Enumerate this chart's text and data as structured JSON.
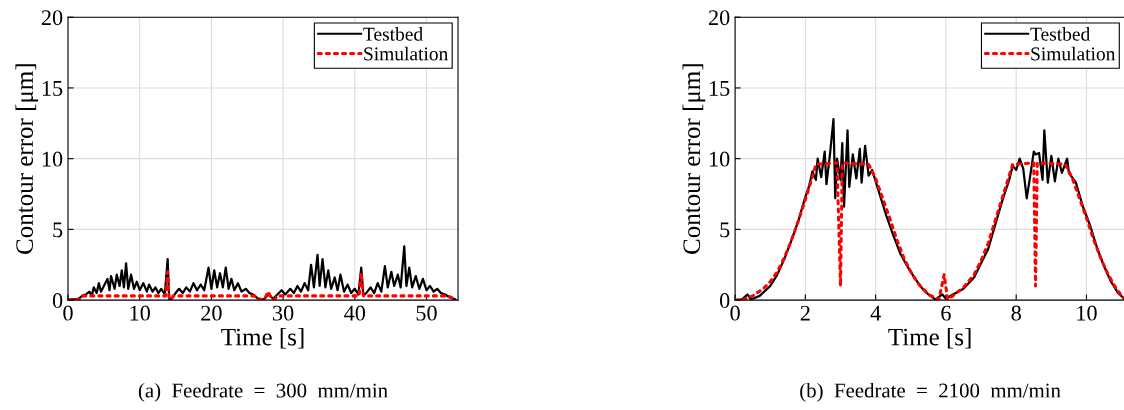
{
  "chart_data": [
    {
      "type": "line",
      "title": "(a)  Feedrate  =  300  mm/min",
      "xlabel": "Time [s]",
      "ylabel": "Contour error [μm]",
      "xlim": [
        0,
        54.4
      ],
      "ylim": [
        0,
        20
      ],
      "xticks": [
        0,
        10,
        20,
        30,
        40,
        50
      ],
      "yticks": [
        0,
        5,
        10,
        15,
        20
      ],
      "grid": true,
      "legend": "top right",
      "series": [
        {
          "name": "Testbed",
          "color": "#000000",
          "line_style": "solid",
          "x": [
            0,
            1,
            1.5,
            2,
            2.5,
            3,
            3.3,
            3.6,
            4,
            4.3,
            4.6,
            5,
            5.5,
            5.8,
            6,
            6.5,
            6.8,
            7.2,
            7.5,
            7.8,
            8.1,
            8.4,
            8.8,
            9.2,
            9.6,
            10,
            10.5,
            11,
            11.3,
            11.8,
            12.2,
            12.6,
            13,
            13.5,
            13.9,
            14.1,
            14.4,
            15,
            15.5,
            16,
            16.5,
            17,
            17.5,
            18,
            18.5,
            19,
            19.6,
            20,
            20.4,
            20.8,
            21.2,
            21.6,
            22,
            22.4,
            22.8,
            23.2,
            23.7,
            24.2,
            24.8,
            25.3,
            25.8,
            26.5,
            27.3,
            28,
            28.6,
            29.2,
            29.8,
            30.3,
            31,
            31.5,
            32,
            32.5,
            33,
            33.5,
            33.9,
            34.3,
            34.8,
            35.1,
            35.5,
            35.9,
            36.3,
            36.7,
            37.2,
            37.6,
            38,
            38.5,
            39,
            39.5,
            40,
            40.5,
            40.9,
            41.2,
            41.6,
            42.2,
            42.7,
            43.2,
            43.7,
            44.2,
            44.6,
            45.1,
            45.5,
            46,
            46.4,
            46.9,
            47.2,
            47.6,
            48,
            48.5,
            49,
            49.5,
            50,
            50.5,
            51,
            51.5,
            52,
            52.6,
            53.2,
            54
          ],
          "values": [
            0.05,
            0.05,
            0.1,
            0.3,
            0.4,
            0.6,
            0.3,
            0.9,
            0.5,
            1.2,
            0.6,
            1.0,
            1.5,
            0.7,
            1.7,
            0.8,
            1.8,
            1.0,
            2.1,
            0.9,
            2.6,
            0.8,
            1.8,
            0.8,
            1.3,
            0.7,
            1.2,
            0.6,
            1.1,
            0.6,
            0.9,
            0.5,
            0.8,
            0.4,
            2.9,
            0.1,
            0.05,
            0.5,
            0.8,
            0.5,
            0.9,
            0.6,
            1.2,
            0.7,
            1.1,
            0.7,
            2.3,
            0.8,
            2.1,
            0.9,
            1.9,
            0.9,
            2.3,
            0.8,
            1.5,
            0.7,
            1.2,
            0.6,
            0.8,
            0.5,
            0.4,
            0.1,
            0.05,
            0.4,
            0.1,
            0.4,
            0.7,
            0.4,
            0.8,
            0.5,
            1.0,
            0.6,
            1.2,
            0.7,
            2.5,
            0.9,
            3.2,
            1.0,
            2.9,
            0.9,
            2.1,
            0.8,
            1.6,
            0.7,
            1.8,
            0.6,
            1.1,
            0.5,
            0.8,
            0.4,
            2.3,
            0.3,
            0.5,
            0.9,
            0.5,
            1.2,
            0.6,
            2.4,
            0.9,
            2.0,
            1.0,
            1.8,
            0.9,
            3.8,
            1.0,
            2.3,
            0.9,
            1.7,
            0.8,
            1.5,
            0.7,
            1.0,
            0.6,
            0.8,
            0.5,
            0.4,
            0.2,
            0.05
          ]
        },
        {
          "name": "Simulation",
          "color": "#ff0000",
          "line_style": "dotted",
          "x": [
            0,
            1.5,
            2,
            13.6,
            13.9,
            14.1,
            14.4,
            14.7,
            26,
            26.8,
            27.4,
            27.9,
            28.4,
            28.8,
            29.2,
            40.6,
            40.9,
            41.2,
            53,
            54
          ],
          "values": [
            0.05,
            0.05,
            0.3,
            0.3,
            2.0,
            0.1,
            0.05,
            0.3,
            0.3,
            0.05,
            0.05,
            0.6,
            0.1,
            0.05,
            0.3,
            0.3,
            1.9,
            0.3,
            0.3,
            0.05
          ]
        }
      ]
    },
    {
      "type": "line",
      "title": "(b)  Feedrate  =  2100  mm/min",
      "xlabel": "Time [s]",
      "ylabel": "Contour error [μm]",
      "xlim": [
        0,
        11.1
      ],
      "ylim": [
        0,
        20
      ],
      "xticks": [
        0,
        2,
        4,
        6,
        8,
        10
      ],
      "yticks": [
        0,
        5,
        10,
        15,
        20
      ],
      "grid": true,
      "legend": "top right",
      "series": [
        {
          "name": "Testbed",
          "color": "#000000",
          "line_style": "solid",
          "x": [
            0,
            0.2,
            0.35,
            0.45,
            0.7,
            1.0,
            1.2,
            1.4,
            1.6,
            1.8,
            2.0,
            2.1,
            2.2,
            2.3,
            2.35,
            2.45,
            2.55,
            2.6,
            2.7,
            2.8,
            2.85,
            2.9,
            3.0,
            3.05,
            3.1,
            3.2,
            3.25,
            3.35,
            3.45,
            3.55,
            3.6,
            3.7,
            3.8,
            3.9,
            4.1,
            4.3,
            4.5,
            4.7,
            4.9,
            5.1,
            5.3,
            5.5,
            5.7,
            5.9,
            6.0,
            6.2,
            6.5,
            6.8,
            7.0,
            7.2,
            7.4,
            7.6,
            7.8,
            7.9,
            8.0,
            8.1,
            8.2,
            8.3,
            8.4,
            8.5,
            8.55,
            8.65,
            8.75,
            8.8,
            8.9,
            9.0,
            9.1,
            9.2,
            9.3,
            9.45,
            9.5,
            9.7,
            9.9,
            10.1,
            10.3,
            10.5,
            10.7,
            10.9,
            11.1
          ],
          "values": [
            0,
            0.05,
            0.4,
            0.05,
            0.3,
            1.0,
            1.8,
            2.9,
            4.2,
            5.6,
            7.3,
            8.0,
            9.1,
            8.5,
            10.0,
            8.7,
            10.5,
            8.2,
            10.3,
            12.8,
            7.2,
            10.0,
            8.5,
            11.1,
            6.6,
            12.0,
            8.0,
            10.3,
            8.6,
            10.7,
            8.3,
            10.9,
            8.8,
            9.2,
            7.6,
            6.0,
            4.6,
            3.3,
            2.4,
            1.6,
            0.9,
            0.4,
            0.05,
            0.4,
            0.1,
            0.4,
            0.8,
            1.6,
            2.6,
            3.6,
            5.3,
            7.0,
            8.5,
            9.5,
            9.2,
            10.0,
            9.3,
            7.2,
            8.8,
            10.5,
            10.3,
            10.4,
            8.5,
            12.0,
            8.3,
            10.2,
            8.4,
            10.0,
            9.0,
            10.0,
            9.0,
            8.3,
            6.6,
            5.3,
            3.7,
            2.4,
            1.3,
            0.5,
            0.05
          ]
        },
        {
          "name": "Simulation",
          "color": "#ff0000",
          "line_style": "dotted",
          "x": [
            0,
            0.2,
            0.5,
            0.8,
            1.0,
            1.2,
            1.4,
            1.6,
            1.8,
            2.0,
            2.2,
            2.3,
            2.9,
            3.0,
            3.05,
            3.8,
            4.0,
            4.2,
            4.4,
            4.6,
            4.8,
            5.0,
            5.2,
            5.5,
            5.8,
            5.95,
            6.05,
            6.2,
            6.5,
            6.8,
            7.0,
            7.2,
            7.4,
            7.6,
            7.8,
            7.9,
            8.5,
            8.55,
            8.6,
            9.4,
            9.6,
            9.8,
            10.0,
            10.2,
            10.4,
            10.6,
            10.8,
            11.0,
            11.1
          ],
          "values": [
            0,
            0,
            0.3,
            0.8,
            1.3,
            2.0,
            3.0,
            4.2,
            5.6,
            7.1,
            8.7,
            9.6,
            9.7,
            1.0,
            9.7,
            9.6,
            8.6,
            7.2,
            5.8,
            4.3,
            3.0,
            2.0,
            1.2,
            0.4,
            0.05,
            1.8,
            0.05,
            0.3,
            0.9,
            1.8,
            2.8,
            4.0,
            5.6,
            7.2,
            8.8,
            9.6,
            9.7,
            1.0,
            9.7,
            9.6,
            8.6,
            7.2,
            5.8,
            4.3,
            3.0,
            1.9,
            1.0,
            0.3,
            0
          ]
        }
      ]
    }
  ]
}
